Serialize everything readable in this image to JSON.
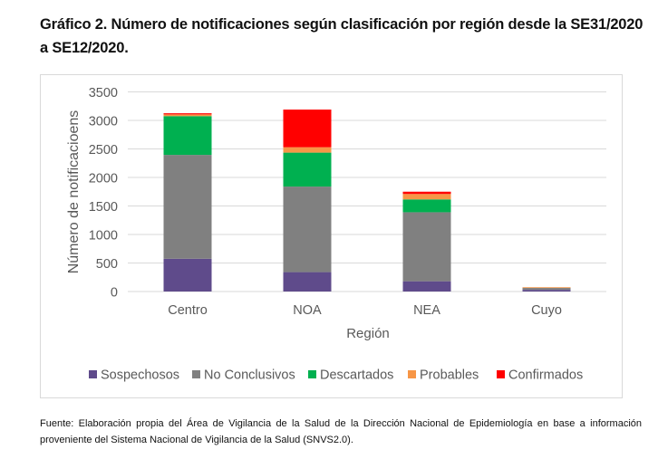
{
  "title": "Gráfico 2. Número de notificaciones según clasificación por región desde la SE31/2020 a SE12/2020.",
  "source": "Fuente: Elaboración propia del Área de Vigilancia de la Salud de la Dirección Nacional de Epidemiología en base a información proveniente del Sistema Nacional de Vigilancia de la Salud (SNVS2.0).",
  "chart_data": {
    "type": "bar",
    "stacked": true,
    "title": "Gráfico 2. Número de notificaciones según clasificación por región desde la SE31/2020 a SE12/2020.",
    "xlabel": "Región",
    "ylabel": "Número de notificacioens",
    "categories": [
      "Centro",
      "NOA",
      "NEA",
      "Cuyo"
    ],
    "ylim": [
      0,
      3500
    ],
    "yticks": [
      0,
      500,
      1000,
      1500,
      2000,
      2500,
      3000,
      3500
    ],
    "grid": true,
    "legend_position": "bottom",
    "series": [
      {
        "name": "Sospechosos",
        "color": "#5f4b8b",
        "values": [
          575,
          340,
          180,
          30
        ]
      },
      {
        "name": "No Conclusivos",
        "color": "#808080",
        "values": [
          1820,
          1500,
          1210,
          35
        ]
      },
      {
        "name": "Descartados",
        "color": "#00b050",
        "values": [
          680,
          595,
          225,
          0
        ]
      },
      {
        "name": "Probables",
        "color": "#f79646",
        "values": [
          30,
          95,
          95,
          10
        ]
      },
      {
        "name": "Confirmados",
        "color": "#ff0000",
        "values": [
          20,
          660,
          40,
          0
        ]
      }
    ]
  }
}
